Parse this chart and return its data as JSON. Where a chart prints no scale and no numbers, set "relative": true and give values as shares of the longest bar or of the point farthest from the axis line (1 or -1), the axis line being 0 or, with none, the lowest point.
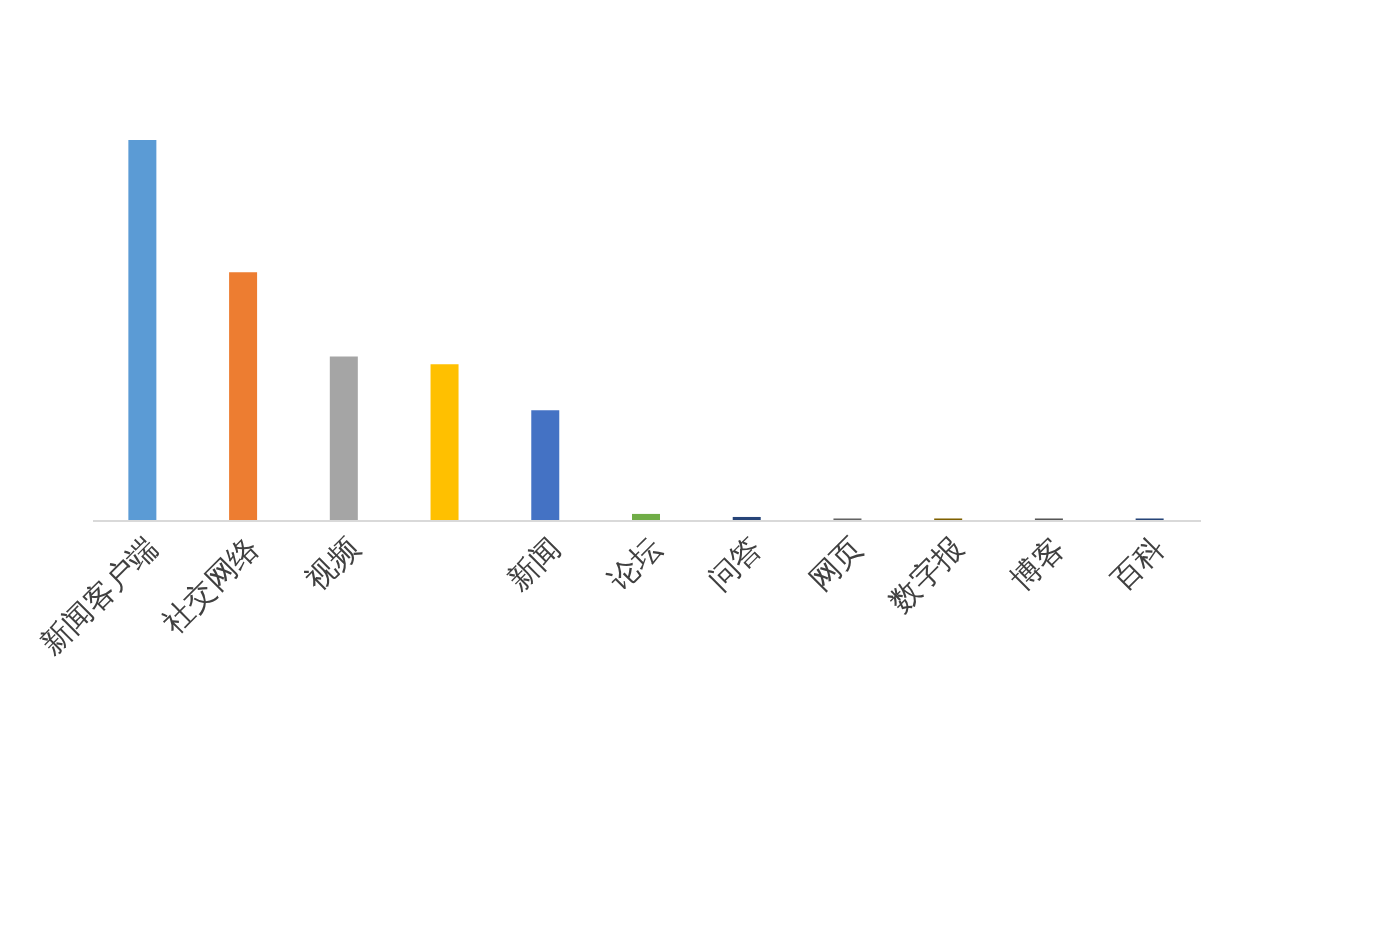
{
  "chart_data": {
    "type": "bar",
    "relative": true,
    "categories": [
      "新闻客户端",
      "社交网络",
      "视频",
      null,
      "新闻",
      "论坛",
      "问答",
      "网页",
      "数字报",
      "博客",
      "百科"
    ],
    "values": [
      1,
      0.652,
      0.43,
      0.41,
      0.289,
      0.016,
      0.008,
      0.004,
      0.004,
      0.004,
      0.004
    ],
    "colors": [
      "#5b9bd5",
      "#ed7d31",
      "#a5a5a5",
      "#ffc000",
      "#4472c4",
      "#70ad47",
      "#264478",
      "#636363",
      "#7f6000",
      "#555555",
      "#264478"
    ],
    "grid": false
  }
}
